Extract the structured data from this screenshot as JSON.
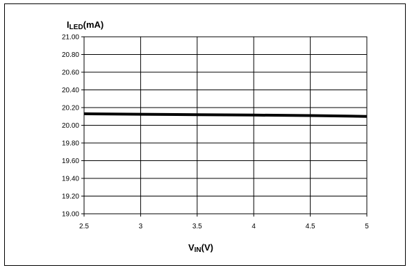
{
  "chart_data": {
    "type": "line",
    "title": "",
    "ylabel": {
      "main": "I",
      "sub": "LED",
      "unit": "(mA)"
    },
    "xlabel": {
      "main": "V",
      "sub": "IN",
      "unit": "(V)"
    },
    "xlim": [
      2.5,
      5
    ],
    "ylim": [
      19.0,
      21.0
    ],
    "x_ticks": [
      "2.5",
      "3",
      "3.5",
      "4",
      "4.5",
      "5"
    ],
    "y_ticks": [
      "19.00",
      "19.20",
      "19.40",
      "19.60",
      "19.80",
      "20.00",
      "20.20",
      "20.40",
      "20.60",
      "20.80",
      "21.00"
    ],
    "grid": true,
    "series": [
      {
        "x": [
          2.5,
          3.0,
          3.5,
          4.0,
          4.5,
          5.0
        ],
        "y": [
          20.13,
          20.125,
          20.12,
          20.115,
          20.11,
          20.1
        ],
        "color": "#000000"
      }
    ]
  }
}
